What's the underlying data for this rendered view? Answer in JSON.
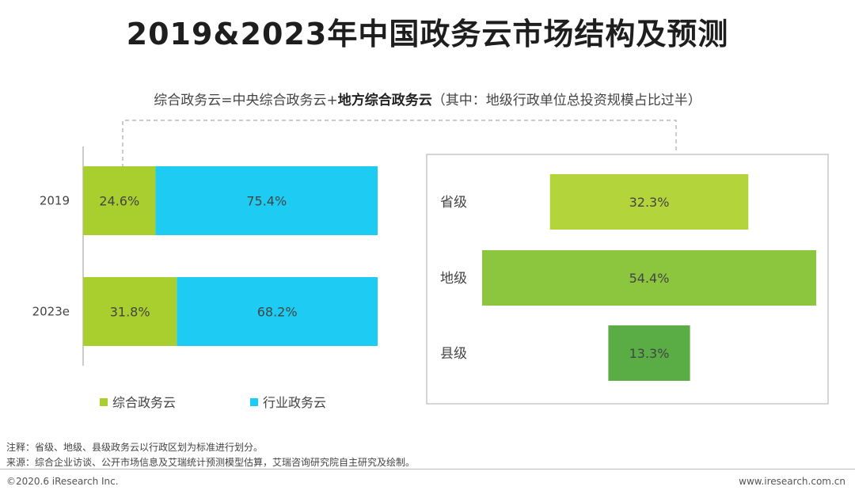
{
  "title": "2019&2023年中国政务云市场结构及预测",
  "subtitle": {
    "part1": "综合政务云=中央综合政务云+",
    "part2": "地方综合政务云",
    "part3": "（其中：地级行政单位总投资规模占比过半）"
  },
  "footnote_note": "注释：省级、地级、县级政务云以行政区划为标准进行划分。",
  "footnote_source": "来源：综合企业访谈、公开市场信息及艾瑞统计预测模型估算，艾瑞咨询研究院自主研究及绘制。",
  "copyright": "©2020.6 iResearch Inc.",
  "website": "www.iresearch.com.cn",
  "chart_data": [
    {
      "type": "bar",
      "stacked": true,
      "orientation": "horizontal",
      "categories": [
        "2019",
        "2023e"
      ],
      "series": [
        {
          "name": "综合政务云",
          "values": [
            24.6,
            31.8
          ],
          "labels": [
            "24.6%",
            "31.8%"
          ],
          "color": "#a8cf2d"
        },
        {
          "name": "行业政务云",
          "values": [
            75.4,
            68.2
          ],
          "labels": [
            "75.4%",
            "68.2%"
          ],
          "color": "#1ecbf2"
        }
      ],
      "xlim": [
        0,
        100
      ],
      "legend": "bottom"
    },
    {
      "type": "bar",
      "orientation": "horizontal",
      "centered": true,
      "categories": [
        "省级",
        "地级",
        "县级"
      ],
      "values": [
        32.3,
        54.4,
        13.3
      ],
      "labels": [
        "32.3%",
        "54.4%",
        "13.3%"
      ],
      "colors": [
        "#b3d43a",
        "#8cc63f",
        "#5aac44"
      ]
    }
  ]
}
